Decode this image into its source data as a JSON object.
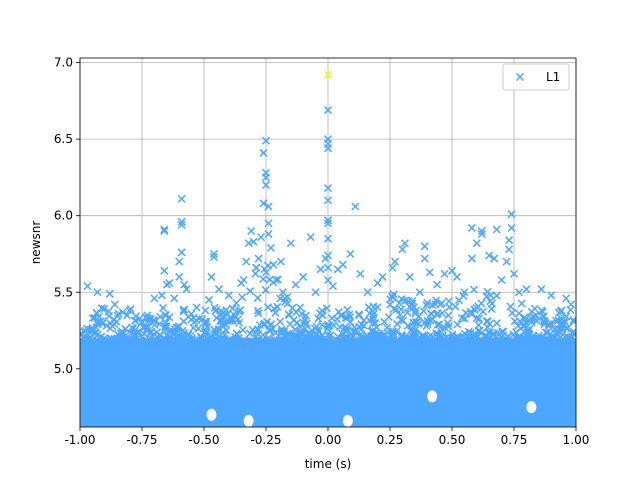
{
  "chart_data": {
    "type": "scatter",
    "xlabel": "time (s)",
    "ylabel": "newsnr",
    "xlim": [
      -1.0,
      1.0
    ],
    "ylim": [
      4.62,
      7.03
    ],
    "xticks": [
      "-1.00",
      "-0.75",
      "-0.50",
      "-0.25",
      "0.00",
      "0.25",
      "0.50",
      "0.75",
      "1.00"
    ],
    "xtick_values": [
      -1.0,
      -0.75,
      -0.5,
      -0.25,
      0.0,
      0.25,
      0.5,
      0.75,
      1.0
    ],
    "yticks": [
      "5.0",
      "5.5",
      "6.0",
      "6.5",
      "7.0"
    ],
    "ytick_values": [
      5.0,
      5.5,
      6.0,
      6.5,
      7.0
    ],
    "grid": true,
    "legend_position": "top-right",
    "marker": "x",
    "series": [
      {
        "name": "L1",
        "color": "#4da6ff",
        "points": [
          [
            -0.97,
            5.54
          ],
          [
            -0.93,
            5.5
          ],
          [
            -0.88,
            5.49
          ],
          [
            -0.86,
            5.42
          ],
          [
            -0.8,
            5.38
          ],
          [
            -0.72,
            5.32
          ],
          [
            -0.7,
            5.46
          ],
          [
            -0.67,
            5.48
          ],
          [
            -0.66,
            5.64
          ],
          [
            -0.66,
            5.9
          ],
          [
            -0.66,
            5.91
          ],
          [
            -0.65,
            5.55
          ],
          [
            -0.64,
            5.56
          ],
          [
            -0.62,
            5.46
          ],
          [
            -0.6,
            5.6
          ],
          [
            -0.6,
            5.7
          ],
          [
            -0.59,
            5.76
          ],
          [
            -0.59,
            5.94
          ],
          [
            -0.59,
            5.96
          ],
          [
            -0.59,
            6.11
          ],
          [
            -0.58,
            5.55
          ],
          [
            -0.57,
            5.52
          ],
          [
            -0.53,
            5.4
          ],
          [
            -0.48,
            5.45
          ],
          [
            -0.47,
            5.6
          ],
          [
            -0.46,
            5.73
          ],
          [
            -0.46,
            5.75
          ],
          [
            -0.44,
            5.52
          ],
          [
            -0.4,
            5.48
          ],
          [
            -0.37,
            5.43
          ],
          [
            -0.35,
            5.56
          ],
          [
            -0.34,
            5.58
          ],
          [
            -0.33,
            5.7
          ],
          [
            -0.32,
            5.82
          ],
          [
            -0.31,
            5.9
          ],
          [
            -0.3,
            5.83
          ],
          [
            -0.29,
            5.66
          ],
          [
            -0.28,
            5.72
          ],
          [
            -0.27,
            5.86
          ],
          [
            -0.26,
            6.08
          ],
          [
            -0.26,
            6.41
          ],
          [
            -0.25,
            6.49
          ],
          [
            -0.25,
            6.28
          ],
          [
            -0.25,
            6.25
          ],
          [
            -0.25,
            6.2
          ],
          [
            -0.24,
            6.06
          ],
          [
            -0.24,
            5.95
          ],
          [
            -0.24,
            5.88
          ],
          [
            -0.23,
            5.79
          ],
          [
            -0.22,
            5.68
          ],
          [
            -0.21,
            5.58
          ],
          [
            -0.19,
            5.7
          ],
          [
            -0.15,
            5.82
          ],
          [
            -0.13,
            5.55
          ],
          [
            -0.1,
            5.6
          ],
          [
            -0.07,
            5.86
          ],
          [
            -0.05,
            5.5
          ],
          [
            -0.03,
            5.65
          ],
          [
            -0.01,
            5.72
          ],
          [
            0.0,
            6.92
          ],
          [
            0.0,
            6.69
          ],
          [
            0.0,
            6.5
          ],
          [
            0.0,
            6.47
          ],
          [
            0.0,
            6.44
          ],
          [
            0.0,
            6.18
          ],
          [
            0.0,
            6.1
          ],
          [
            0.0,
            5.97
          ],
          [
            0.0,
            5.95
          ],
          [
            0.0,
            5.85
          ],
          [
            0.0,
            5.74
          ],
          [
            0.0,
            5.66
          ],
          [
            0.0,
            5.58
          ],
          [
            0.02,
            5.54
          ],
          [
            0.04,
            5.65
          ],
          [
            0.06,
            5.68
          ],
          [
            0.09,
            5.75
          ],
          [
            0.11,
            6.06
          ],
          [
            0.13,
            5.62
          ],
          [
            0.16,
            5.5
          ],
          [
            0.2,
            5.56
          ],
          [
            0.22,
            5.6
          ],
          [
            0.26,
            5.66
          ],
          [
            0.27,
            5.7
          ],
          [
            0.3,
            5.78
          ],
          [
            0.31,
            5.82
          ],
          [
            0.33,
            5.6
          ],
          [
            0.37,
            5.5
          ],
          [
            0.39,
            5.8
          ],
          [
            0.39,
            5.72
          ],
          [
            0.41,
            5.63
          ],
          [
            0.44,
            5.55
          ],
          [
            0.47,
            5.62
          ],
          [
            0.5,
            5.64
          ],
          [
            0.52,
            5.6
          ],
          [
            0.55,
            5.5
          ],
          [
            0.58,
            5.72
          ],
          [
            0.58,
            5.92
          ],
          [
            0.6,
            5.82
          ],
          [
            0.62,
            5.88
          ],
          [
            0.62,
            5.9
          ],
          [
            0.65,
            5.74
          ],
          [
            0.67,
            5.72
          ],
          [
            0.68,
            5.91
          ],
          [
            0.7,
            5.58
          ],
          [
            0.72,
            5.7
          ],
          [
            0.73,
            5.78
          ],
          [
            0.73,
            5.84
          ],
          [
            0.74,
            5.92
          ],
          [
            0.74,
            6.01
          ],
          [
            0.75,
            5.62
          ],
          [
            0.77,
            5.5
          ],
          [
            0.8,
            5.52
          ],
          [
            0.86,
            5.52
          ],
          [
            0.9,
            5.48
          ],
          [
            0.96,
            5.46
          ],
          [
            0.98,
            5.42
          ]
        ],
        "highlight_point": [
          0.0,
          6.92
        ],
        "highlight_color": "#ffff00"
      }
    ]
  }
}
